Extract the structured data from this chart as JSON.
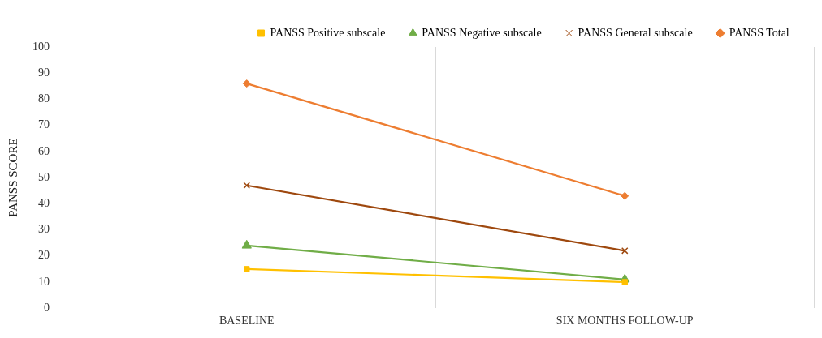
{
  "chart_data": {
    "type": "line",
    "ylabel": "PANSS SCORE",
    "categories": [
      "BASELINE",
      "SIX MONTHS FOLLOW-UP"
    ],
    "series": [
      {
        "name": "PANSS Positive subscale",
        "color": "#ffc000",
        "values": [
          15,
          10
        ],
        "marker": "square"
      },
      {
        "name": "PANSS Negative subscale",
        "color": "#70ad47",
        "values": [
          24,
          11
        ],
        "marker": "triangle"
      },
      {
        "name": "PANSS General subscale",
        "color": "#9e480e",
        "values": [
          47,
          22
        ],
        "marker": "cross"
      },
      {
        "name": "PANSS Total",
        "color": "#ed7d31",
        "values": [
          86,
          43
        ],
        "marker": "diamond"
      }
    ],
    "ylim": [
      0,
      100
    ],
    "yticks": [
      0,
      10,
      20,
      30,
      40,
      50,
      60,
      70,
      80,
      90,
      100
    ],
    "grid": "x",
    "legend": "top right",
    "line_style": "solid"
  }
}
